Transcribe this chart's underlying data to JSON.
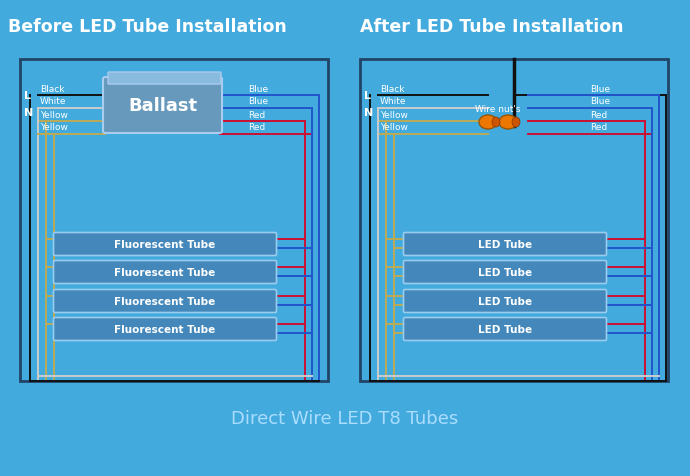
{
  "bg_color": "#42AADD",
  "title_before": "Before LED Tube Installation",
  "title_after": "After LED Tube Installation",
  "subtitle": "Direct Wire LED T8 Tubes",
  "title_color": "white",
  "title_fontsize": 12.5,
  "subtitle_fontsize": 13,
  "wire_colors": {
    "black": "#111111",
    "white": "#CCCCCC",
    "yellow": "#BBAA55",
    "blue": "#2255CC",
    "red": "#CC1133"
  },
  "tube_fill": "#4488BB",
  "tube_edge": "#99CCEE",
  "tube_text": "white",
  "ballast_fill": "#6699BB",
  "ballast_edge": "#AACCEE",
  "ballast_text": "white",
  "wire_nut_color": "#EE7700",
  "box_edge": "#224466",
  "lw": 1.4
}
